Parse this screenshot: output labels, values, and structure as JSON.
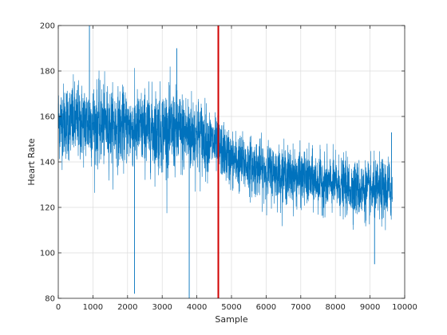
{
  "chart_data": {
    "type": "line",
    "title": "",
    "xlabel": "Sample",
    "ylabel": "Heart Rate",
    "xlim": [
      0,
      10000
    ],
    "ylim": [
      80,
      200
    ],
    "xticks": [
      0,
      1000,
      2000,
      3000,
      4000,
      5000,
      6000,
      7000,
      8000,
      9000,
      10000
    ],
    "yticks": [
      80,
      100,
      120,
      140,
      160,
      180,
      200
    ],
    "grid": true,
    "legend": "none",
    "n_samples": 9650,
    "series": [
      {
        "color": "#0072BD",
        "style": "dense noisy trace",
        "trend_x": [
          0,
          1000,
          2000,
          3000,
          4000,
          4600,
          5000,
          6000,
          7000,
          8000,
          9000,
          9650
        ],
        "trend_mean": [
          158,
          157,
          155,
          154,
          152,
          147,
          141,
          136,
          133,
          130,
          127,
          128
        ],
        "trend_upper": [
          175,
          178,
          172,
          175,
          171,
          160,
          153,
          148,
          145,
          143,
          141,
          145
        ],
        "trend_lower": [
          141,
          141,
          139,
          137,
          134,
          136,
          127,
          122,
          120,
          118,
          115,
          115
        ],
        "spikes": [
          {
            "x": 900,
            "y": 200
          },
          {
            "x": 2200,
            "y": 82
          },
          {
            "x": 3780,
            "y": 80
          },
          {
            "x": 3420,
            "y": 190
          },
          {
            "x": 9130,
            "y": 95
          },
          {
            "x": 9620,
            "y": 153
          }
        ]
      }
    ],
    "vlines": [
      {
        "x": 4620,
        "color": "#D00000"
      }
    ]
  }
}
